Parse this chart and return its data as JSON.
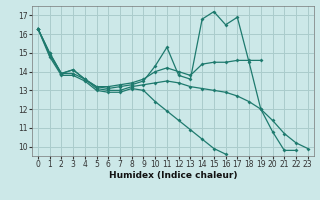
{
  "title": "",
  "xlabel": "Humidex (Indice chaleur)",
  "ylabel": "",
  "background_color": "#cce8e8",
  "grid_color": "#aacccc",
  "line_color": "#1e7a6e",
  "xlim": [
    -0.5,
    23.5
  ],
  "ylim": [
    9.5,
    17.5
  ],
  "yticks": [
    10,
    11,
    12,
    13,
    14,
    15,
    16,
    17
  ],
  "xticks": [
    0,
    1,
    2,
    3,
    4,
    5,
    6,
    7,
    8,
    9,
    10,
    11,
    12,
    13,
    14,
    15,
    16,
    17,
    18,
    19,
    20,
    21,
    22,
    23
  ],
  "series": [
    {
      "x": [
        0,
        1,
        2,
        3,
        4,
        5,
        6,
        7,
        8,
        9,
        10,
        11,
        12,
        13,
        14,
        15,
        16,
        17,
        18,
        19,
        20,
        21,
        22
      ],
      "y": [
        16.3,
        15.0,
        13.9,
        14.1,
        13.6,
        13.2,
        13.1,
        13.2,
        13.3,
        13.5,
        14.3,
        15.3,
        13.8,
        13.6,
        16.8,
        17.2,
        16.5,
        16.9,
        14.5,
        12.0,
        10.8,
        9.8,
        9.8
      ]
    },
    {
      "x": [
        0,
        1,
        2,
        3,
        4,
        5,
        6,
        7,
        8,
        9,
        10,
        11,
        12,
        13,
        14,
        15,
        16,
        17,
        18,
        19
      ],
      "y": [
        16.3,
        15.0,
        13.9,
        14.1,
        13.6,
        13.2,
        13.2,
        13.3,
        13.4,
        13.6,
        14.0,
        14.2,
        14.0,
        13.8,
        14.4,
        14.5,
        14.5,
        14.6,
        14.6,
        14.6
      ]
    },
    {
      "x": [
        0,
        1,
        2,
        3,
        4,
        5,
        6,
        7,
        8,
        9,
        10,
        11,
        12,
        13,
        14,
        15,
        16,
        17,
        18,
        19,
        20,
        21,
        22,
        23
      ],
      "y": [
        16.3,
        14.9,
        13.9,
        13.9,
        13.6,
        13.1,
        13.0,
        13.0,
        13.2,
        13.3,
        13.4,
        13.5,
        13.4,
        13.2,
        13.1,
        13.0,
        12.9,
        12.7,
        12.4,
        12.0,
        11.4,
        10.7,
        10.2,
        9.9
      ]
    },
    {
      "x": [
        0,
        1,
        2,
        3,
        4,
        5,
        6,
        7,
        8,
        9,
        10,
        11,
        12,
        13,
        14,
        15,
        16
      ],
      "y": [
        16.3,
        14.8,
        13.8,
        13.8,
        13.5,
        13.0,
        12.9,
        12.9,
        13.1,
        13.0,
        12.4,
        11.9,
        11.4,
        10.9,
        10.4,
        9.9,
        9.6
      ]
    }
  ]
}
